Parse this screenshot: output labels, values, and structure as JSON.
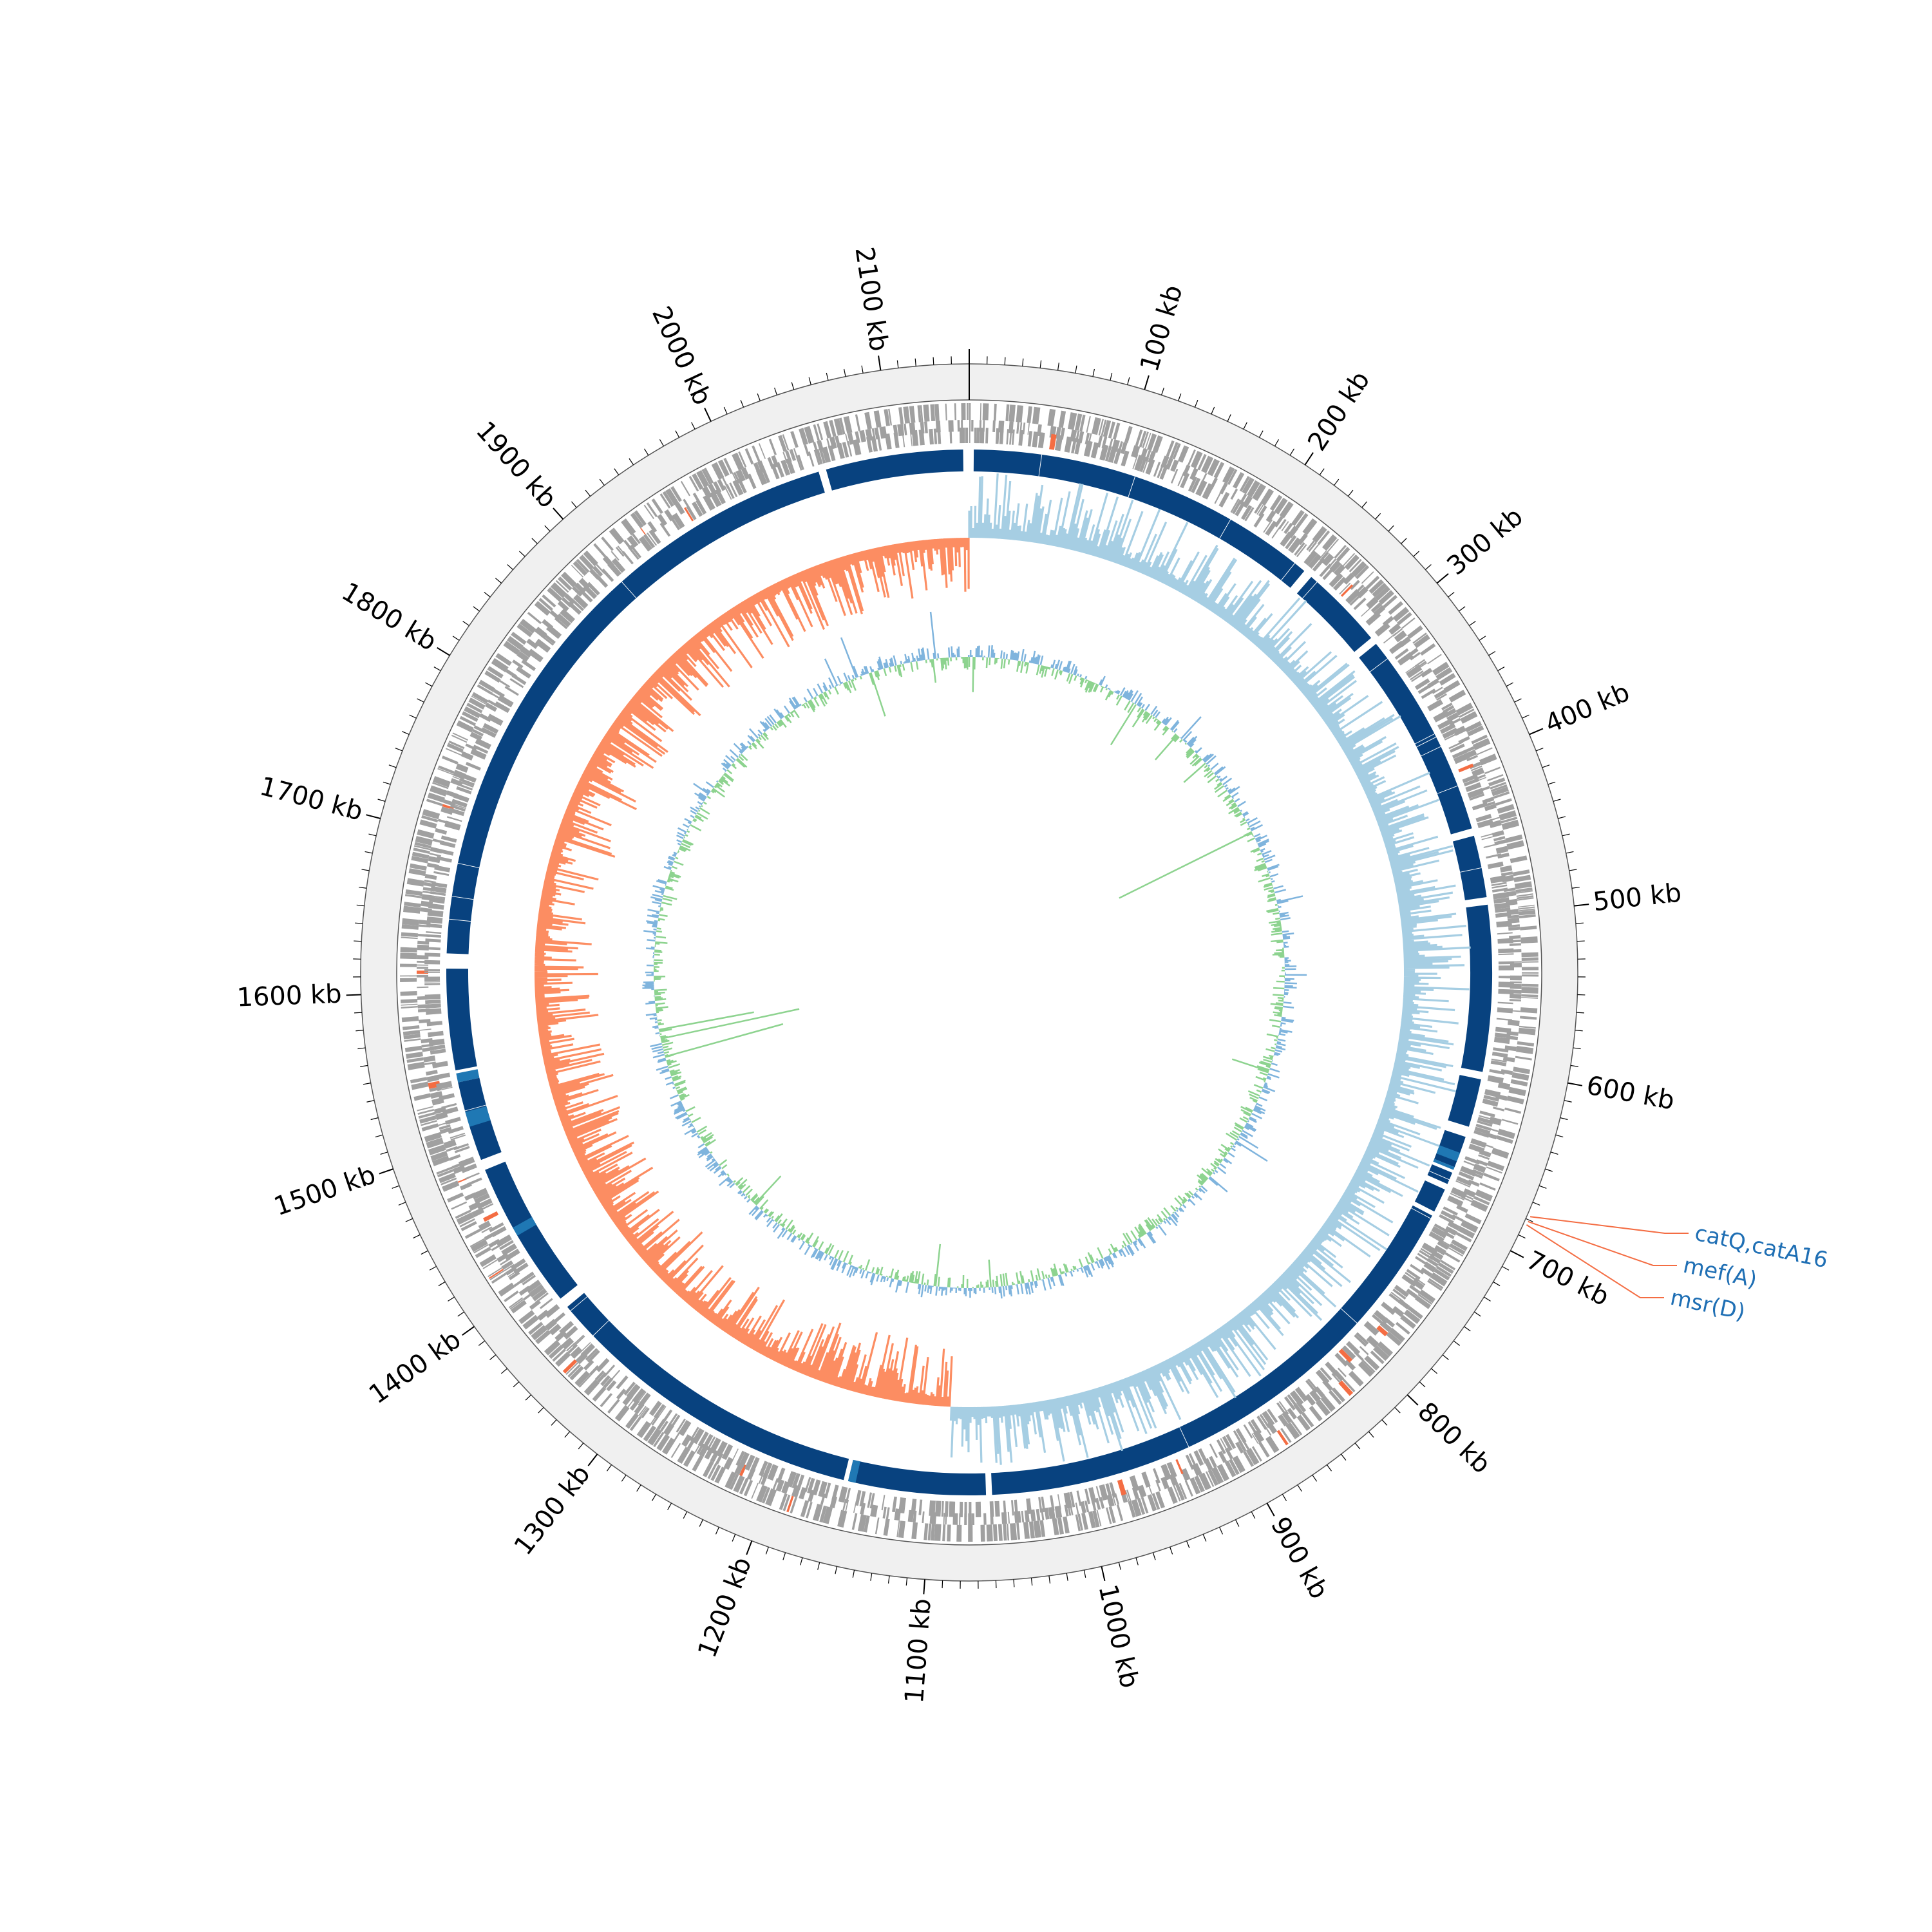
{
  "genome": {
    "length_kb": 2150,
    "tick_labels": [
      {
        "kb": 100,
        "text": "100 kb"
      },
      {
        "kb": 200,
        "text": "200 kb"
      },
      {
        "kb": 300,
        "text": "300 kb"
      },
      {
        "kb": 400,
        "text": "400 kb"
      },
      {
        "kb": 500,
        "text": "500 kb"
      },
      {
        "kb": 600,
        "text": "600 kb"
      },
      {
        "kb": 700,
        "text": "700 kb"
      },
      {
        "kb": 800,
        "text": "800 kb"
      },
      {
        "kb": 900,
        "text": "900 kb"
      },
      {
        "kb": 1000,
        "text": "1000 kb"
      },
      {
        "kb": 1100,
        "text": "1100 kb"
      },
      {
        "kb": 1200,
        "text": "1200 kb"
      },
      {
        "kb": 1300,
        "text": "1300 kb"
      },
      {
        "kb": 1400,
        "text": "1400 kb"
      },
      {
        "kb": 1500,
        "text": "1500 kb"
      },
      {
        "kb": 1600,
        "text": "1600 kb"
      },
      {
        "kb": 1700,
        "text": "1700 kb"
      },
      {
        "kb": 1800,
        "text": "1800 kb"
      },
      {
        "kb": 1900,
        "text": "1900 kb"
      },
      {
        "kb": 2000,
        "text": "2000 kb"
      },
      {
        "kb": 2100,
        "text": "2100 kb"
      }
    ],
    "minor_tick_kb": 10
  },
  "resistance_genes": [
    {
      "label": "catQ,catA16",
      "kb": 678
    },
    {
      "label": "mef(A)",
      "kb": 681
    },
    {
      "label": "msr(D)",
      "kb": 683
    }
  ],
  "colors": {
    "ring_background": "#f0f0f0",
    "gene_gray": "#a0a0a0",
    "gene_red": "#f46d43",
    "blast_dark": "#08427f",
    "blast_medium": "#1f78b4",
    "skew_positive": "#a6cee3",
    "skew_negative": "#fc8d62",
    "gc_positive": "#8dd38f",
    "gc_negative": "#7fb4dd",
    "label_blue": "#1f6fb4",
    "leader_red": "#f46d43"
  }
}
